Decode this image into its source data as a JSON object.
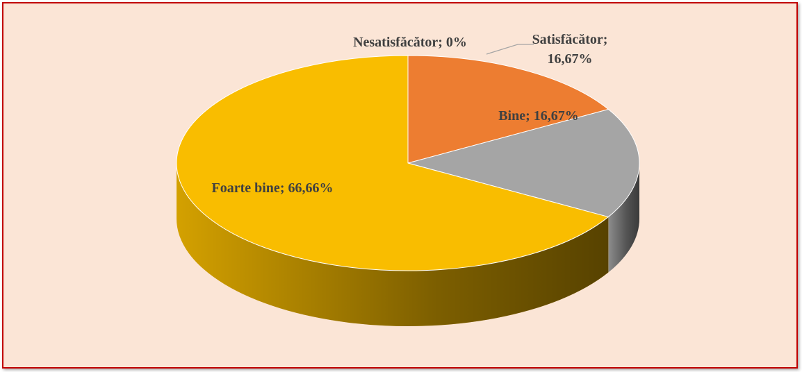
{
  "chart_data": {
    "type": "pie3d",
    "categories": [
      "Nesatisfăcător",
      "Satisfăcător",
      "Bine",
      "Foarte bine"
    ],
    "values": [
      0,
      16.67,
      16.67,
      66.66
    ],
    "value_labels": [
      "0%",
      "16,67%",
      "16,67%",
      "66,66%"
    ],
    "colors": [
      "#4472C4",
      "#ED7D31",
      "#A5A5A5",
      "#F9BD00"
    ]
  }
}
